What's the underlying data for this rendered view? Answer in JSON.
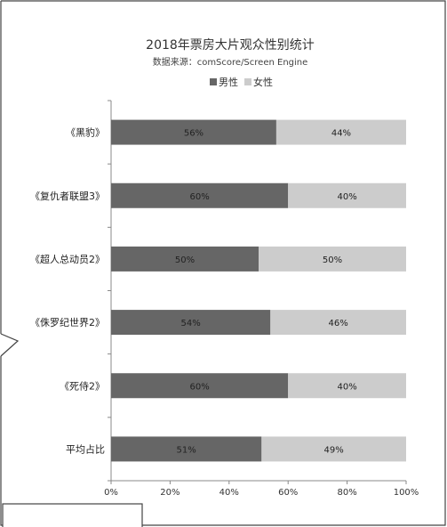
{
  "chart_data": {
    "type": "bar",
    "orientation": "horizontal",
    "stacked": true,
    "title": "2018年票房大片观众性别统计",
    "subtitle": "数据来源：comScore/Screen Engine",
    "categories": [
      "《黑豹》",
      "《复仇者联盟3》",
      "《超人总动员2》",
      "《侏罗纪世界2》",
      "《死侍2》",
      "平均占比"
    ],
    "series": [
      {
        "name": "男性",
        "values": [
          56,
          60,
          50,
          54,
          60,
          51
        ],
        "labels": [
          "56%",
          "60%",
          "50%",
          "54%",
          "60%",
          "51%"
        ],
        "color": "#666666"
      },
      {
        "name": "女性",
        "values": [
          44,
          40,
          50,
          46,
          40,
          49
        ],
        "labels": [
          "44%",
          "40%",
          "50%",
          "46%",
          "40%",
          "49%"
        ],
        "color": "#cccccc"
      }
    ],
    "xlim": [
      0,
      100
    ],
    "x_ticks": [
      "0%",
      "20%",
      "40%",
      "60%",
      "80%",
      "100%"
    ],
    "legend_position": "top",
    "grid": false
  }
}
